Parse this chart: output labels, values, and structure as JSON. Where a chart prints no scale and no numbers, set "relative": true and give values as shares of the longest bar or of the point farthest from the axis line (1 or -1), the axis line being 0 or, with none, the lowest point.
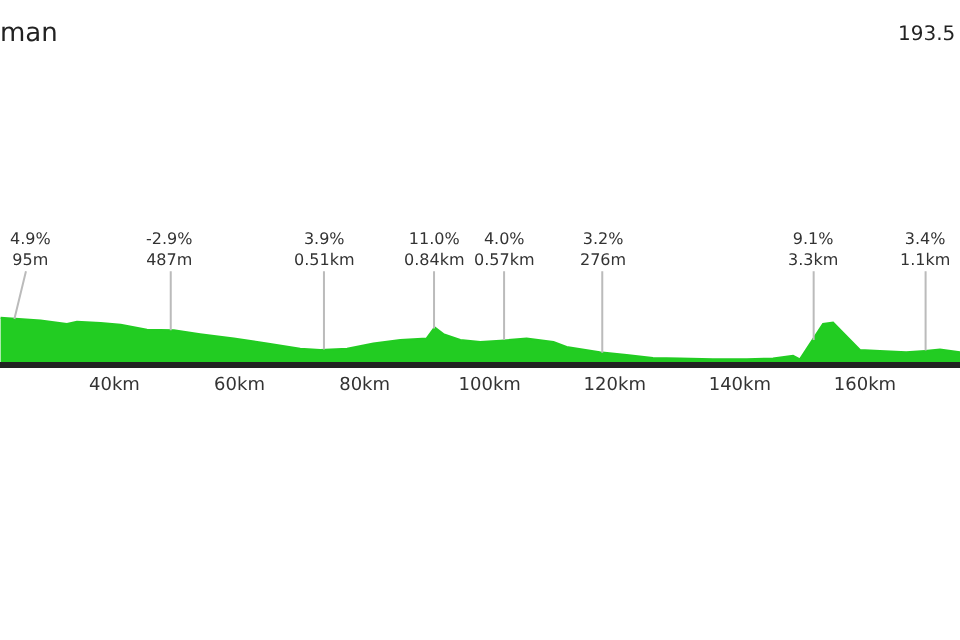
{
  "chart_data": {
    "type": "area",
    "relative": true,
    "title": "man",
    "subtitle": "193.5",
    "x": [
      21.8,
      28.2,
      32.4,
      34.0,
      37.8,
      41.0,
      45.2,
      49.5,
      53.7,
      59.1,
      64.4,
      69.7,
      72.9,
      77.2,
      81.4,
      85.7,
      89.9,
      91.2,
      92.6,
      95.3,
      98.5,
      101.7,
      105.9,
      110.2,
      112.3,
      117.6,
      121.9,
      126.1,
      130.4,
      135.7,
      141.1,
      145.3,
      148.5,
      149.6,
      153.3,
      154.9,
      159.2,
      162.4,
      166.6,
      169.6,
      172.0,
      175.2
    ],
    "series": [
      {
        "color": "#22cc22",
        "values": [
          1,
          0.94,
          0.86,
          0.91,
          0.88,
          0.84,
          0.73,
          0.72,
          0.63,
          0.53,
          0.42,
          0.3,
          0.27,
          0.3,
          0.42,
          0.5,
          0.53,
          0.78,
          0.63,
          0.5,
          0.45,
          0.48,
          0.53,
          0.45,
          0.34,
          0.22,
          0.16,
          0.09,
          0.08,
          0.06,
          0.06,
          0.08,
          0.14,
          0.06,
          0.86,
          0.89,
          0.27,
          0.25,
          0.22,
          0.25,
          0.28,
          0.22
        ]
      }
    ],
    "xlim": [
      21.7,
      175.2
    ],
    "xticks": [
      {
        "value": 40,
        "label": "40km"
      },
      {
        "value": 60,
        "label": "60km"
      },
      {
        "value": 80,
        "label": "80km"
      },
      {
        "value": 100,
        "label": "100km"
      },
      {
        "value": 120,
        "label": "120km"
      },
      {
        "value": 140,
        "label": "140km"
      },
      {
        "value": 160,
        "label": "160km"
      }
    ],
    "annotations": [
      {
        "text": "4.9%\n95m",
        "x": 24.0,
        "y": 0.97
      },
      {
        "text": "-2.9%\n487m",
        "x": 49.0,
        "y": 0.72
      },
      {
        "text": "3.9%\n0.51km",
        "x": 73.5,
        "y": 0.28
      },
      {
        "text": "11.0%\n0.84km",
        "x": 91.1,
        "y": 0.76
      },
      {
        "text": "4.0%\n0.57km",
        "x": 102.3,
        "y": 0.5
      },
      {
        "text": "3.2%\n276m",
        "x": 118.0,
        "y": 0.21
      },
      {
        "text": "9.1%\n3.3km",
        "x": 151.8,
        "y": 0.5
      },
      {
        "text": "3.4%\n1.1km",
        "x": 169.7,
        "y": 0.26
      }
    ]
  }
}
